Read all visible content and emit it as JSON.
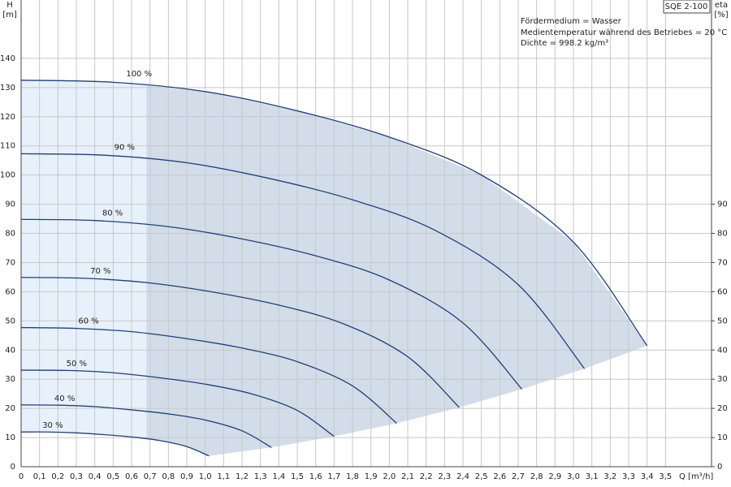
{
  "chart_data": {
    "type": "line",
    "title": "SQE 2-100",
    "info": [
      "Fördermedium = Wasser",
      "Medientemperatur während des Betriebes = 20 °C",
      "Dichte = 998.2 kg/m³"
    ],
    "y_label": "H",
    "y_unit": "[m]",
    "y2_label": "eta",
    "y2_unit": "[%]",
    "x_label": "Q [m³/h]",
    "xlim": [
      0,
      3.75
    ],
    "ylim": [
      0,
      160
    ],
    "y2lim": [
      0,
      160
    ],
    "xticks": [
      0,
      {
        "value": 0.1,
        "label": "0,1"
      },
      {
        "value": 0.2,
        "label": "0,2"
      },
      {
        "value": 0.3,
        "label": "0,3"
      },
      {
        "value": 0.4,
        "label": "0,4"
      },
      {
        "value": 0.5,
        "label": "0,5"
      },
      {
        "value": 0.6,
        "label": "0,6"
      },
      {
        "value": 0.7,
        "label": "0,7"
      },
      {
        "value": 0.8,
        "label": "0,8"
      },
      {
        "value": 0.9,
        "label": "0,9"
      },
      {
        "value": 1.0,
        "label": "1,0"
      },
      {
        "value": 1.1,
        "label": "1,1"
      },
      {
        "value": 1.2,
        "label": "1,2"
      },
      {
        "value": 1.3,
        "label": "1,3"
      },
      {
        "value": 1.4,
        "label": "1,4"
      },
      {
        "value": 1.5,
        "label": "1,5"
      },
      {
        "value": 1.6,
        "label": "1,6"
      },
      {
        "value": 1.7,
        "label": "1,7"
      },
      {
        "value": 1.8,
        "label": "1,8"
      },
      {
        "value": 1.9,
        "label": "1,9"
      },
      {
        "value": 2.0,
        "label": "2,0"
      },
      {
        "value": 2.1,
        "label": "2,1"
      },
      {
        "value": 2.2,
        "label": "2,2"
      },
      {
        "value": 2.3,
        "label": "2,3"
      },
      {
        "value": 2.4,
        "label": "2,4"
      },
      {
        "value": 2.5,
        "label": "2,5"
      },
      {
        "value": 2.6,
        "label": "2,6"
      },
      {
        "value": 2.7,
        "label": "2,7"
      },
      {
        "value": 2.8,
        "label": "2,8"
      },
      {
        "value": 2.9,
        "label": "2,9"
      },
      {
        "value": 3.0,
        "label": "3,0"
      },
      {
        "value": 3.1,
        "label": "3,1"
      },
      {
        "value": 3.2,
        "label": "3,2"
      },
      {
        "value": 3.3,
        "label": "3,3"
      },
      {
        "value": 3.4,
        "label": "3,4"
      },
      {
        "value": 3.5,
        "label": "3,5"
      }
    ],
    "yticks": [
      0,
      10,
      20,
      30,
      40,
      50,
      60,
      70,
      80,
      90,
      100,
      110,
      120,
      130,
      140
    ],
    "y2ticks": [
      0,
      10,
      20,
      30,
      40,
      50,
      60,
      70,
      80,
      90
    ],
    "grid": true,
    "range_start_x": 0.68,
    "series": [
      {
        "name": "100 %",
        "color": "#1f3f7f",
        "x": [
          0,
          0.5,
          1,
          1.5,
          2,
          2.5,
          3,
          3.4
        ],
        "values": [
          132.5,
          131.8,
          128.6,
          122,
          113,
          100,
          77,
          41.5
        ]
      },
      {
        "name": "90 %",
        "color": "#1f3f7f",
        "x": [
          0,
          0.45,
          0.9,
          1.35,
          1.8,
          2.25,
          2.7,
          3.06
        ],
        "values": [
          107.3,
          106.8,
          104.2,
          98.8,
          91.5,
          81,
          62.4,
          33.6
        ]
      },
      {
        "name": "80 %",
        "color": "#1f3f7f",
        "x": [
          0,
          0.4,
          0.8,
          1.2,
          1.6,
          2,
          2.4,
          2.72
        ],
        "values": [
          84.8,
          84.4,
          82.3,
          78.1,
          72.3,
          64,
          49.3,
          26.6
        ]
      },
      {
        "name": "70 %",
        "color": "#1f3f7f",
        "x": [
          0,
          0.35,
          0.7,
          1.05,
          1.4,
          1.75,
          2.1,
          2.38
        ],
        "values": [
          64.9,
          64.6,
          63,
          59.8,
          55.4,
          49,
          37.7,
          20.3
        ]
      },
      {
        "name": "60 %",
        "color": "#1f3f7f",
        "x": [
          0,
          0.3,
          0.6,
          0.9,
          1.2,
          1.5,
          1.8,
          2.04
        ],
        "values": [
          47.7,
          47.4,
          46.3,
          43.9,
          40.7,
          36,
          27.7,
          14.9
        ]
      },
      {
        "name": "50 %",
        "color": "#1f3f7f",
        "x": [
          0,
          0.25,
          0.5,
          0.75,
          1,
          1.25,
          1.5,
          1.7
        ],
        "values": [
          33.1,
          33,
          32.2,
          30.5,
          28.3,
          25,
          19.3,
          10.4
        ]
      },
      {
        "name": "40 %",
        "color": "#1f3f7f",
        "x": [
          0,
          0.2,
          0.4,
          0.6,
          0.8,
          1,
          1.2,
          1.36
        ],
        "values": [
          21.2,
          21.1,
          20.6,
          19.5,
          18.1,
          16,
          12.3,
          6.6
        ]
      },
      {
        "name": "30 %",
        "color": "#1f3f7f",
        "x": [
          0,
          0.15,
          0.3,
          0.45,
          0.6,
          0.75,
          0.9,
          1.02
        ],
        "values": [
          11.9,
          11.9,
          11.6,
          11,
          10.2,
          9,
          6.9,
          3.7
        ]
      }
    ]
  }
}
